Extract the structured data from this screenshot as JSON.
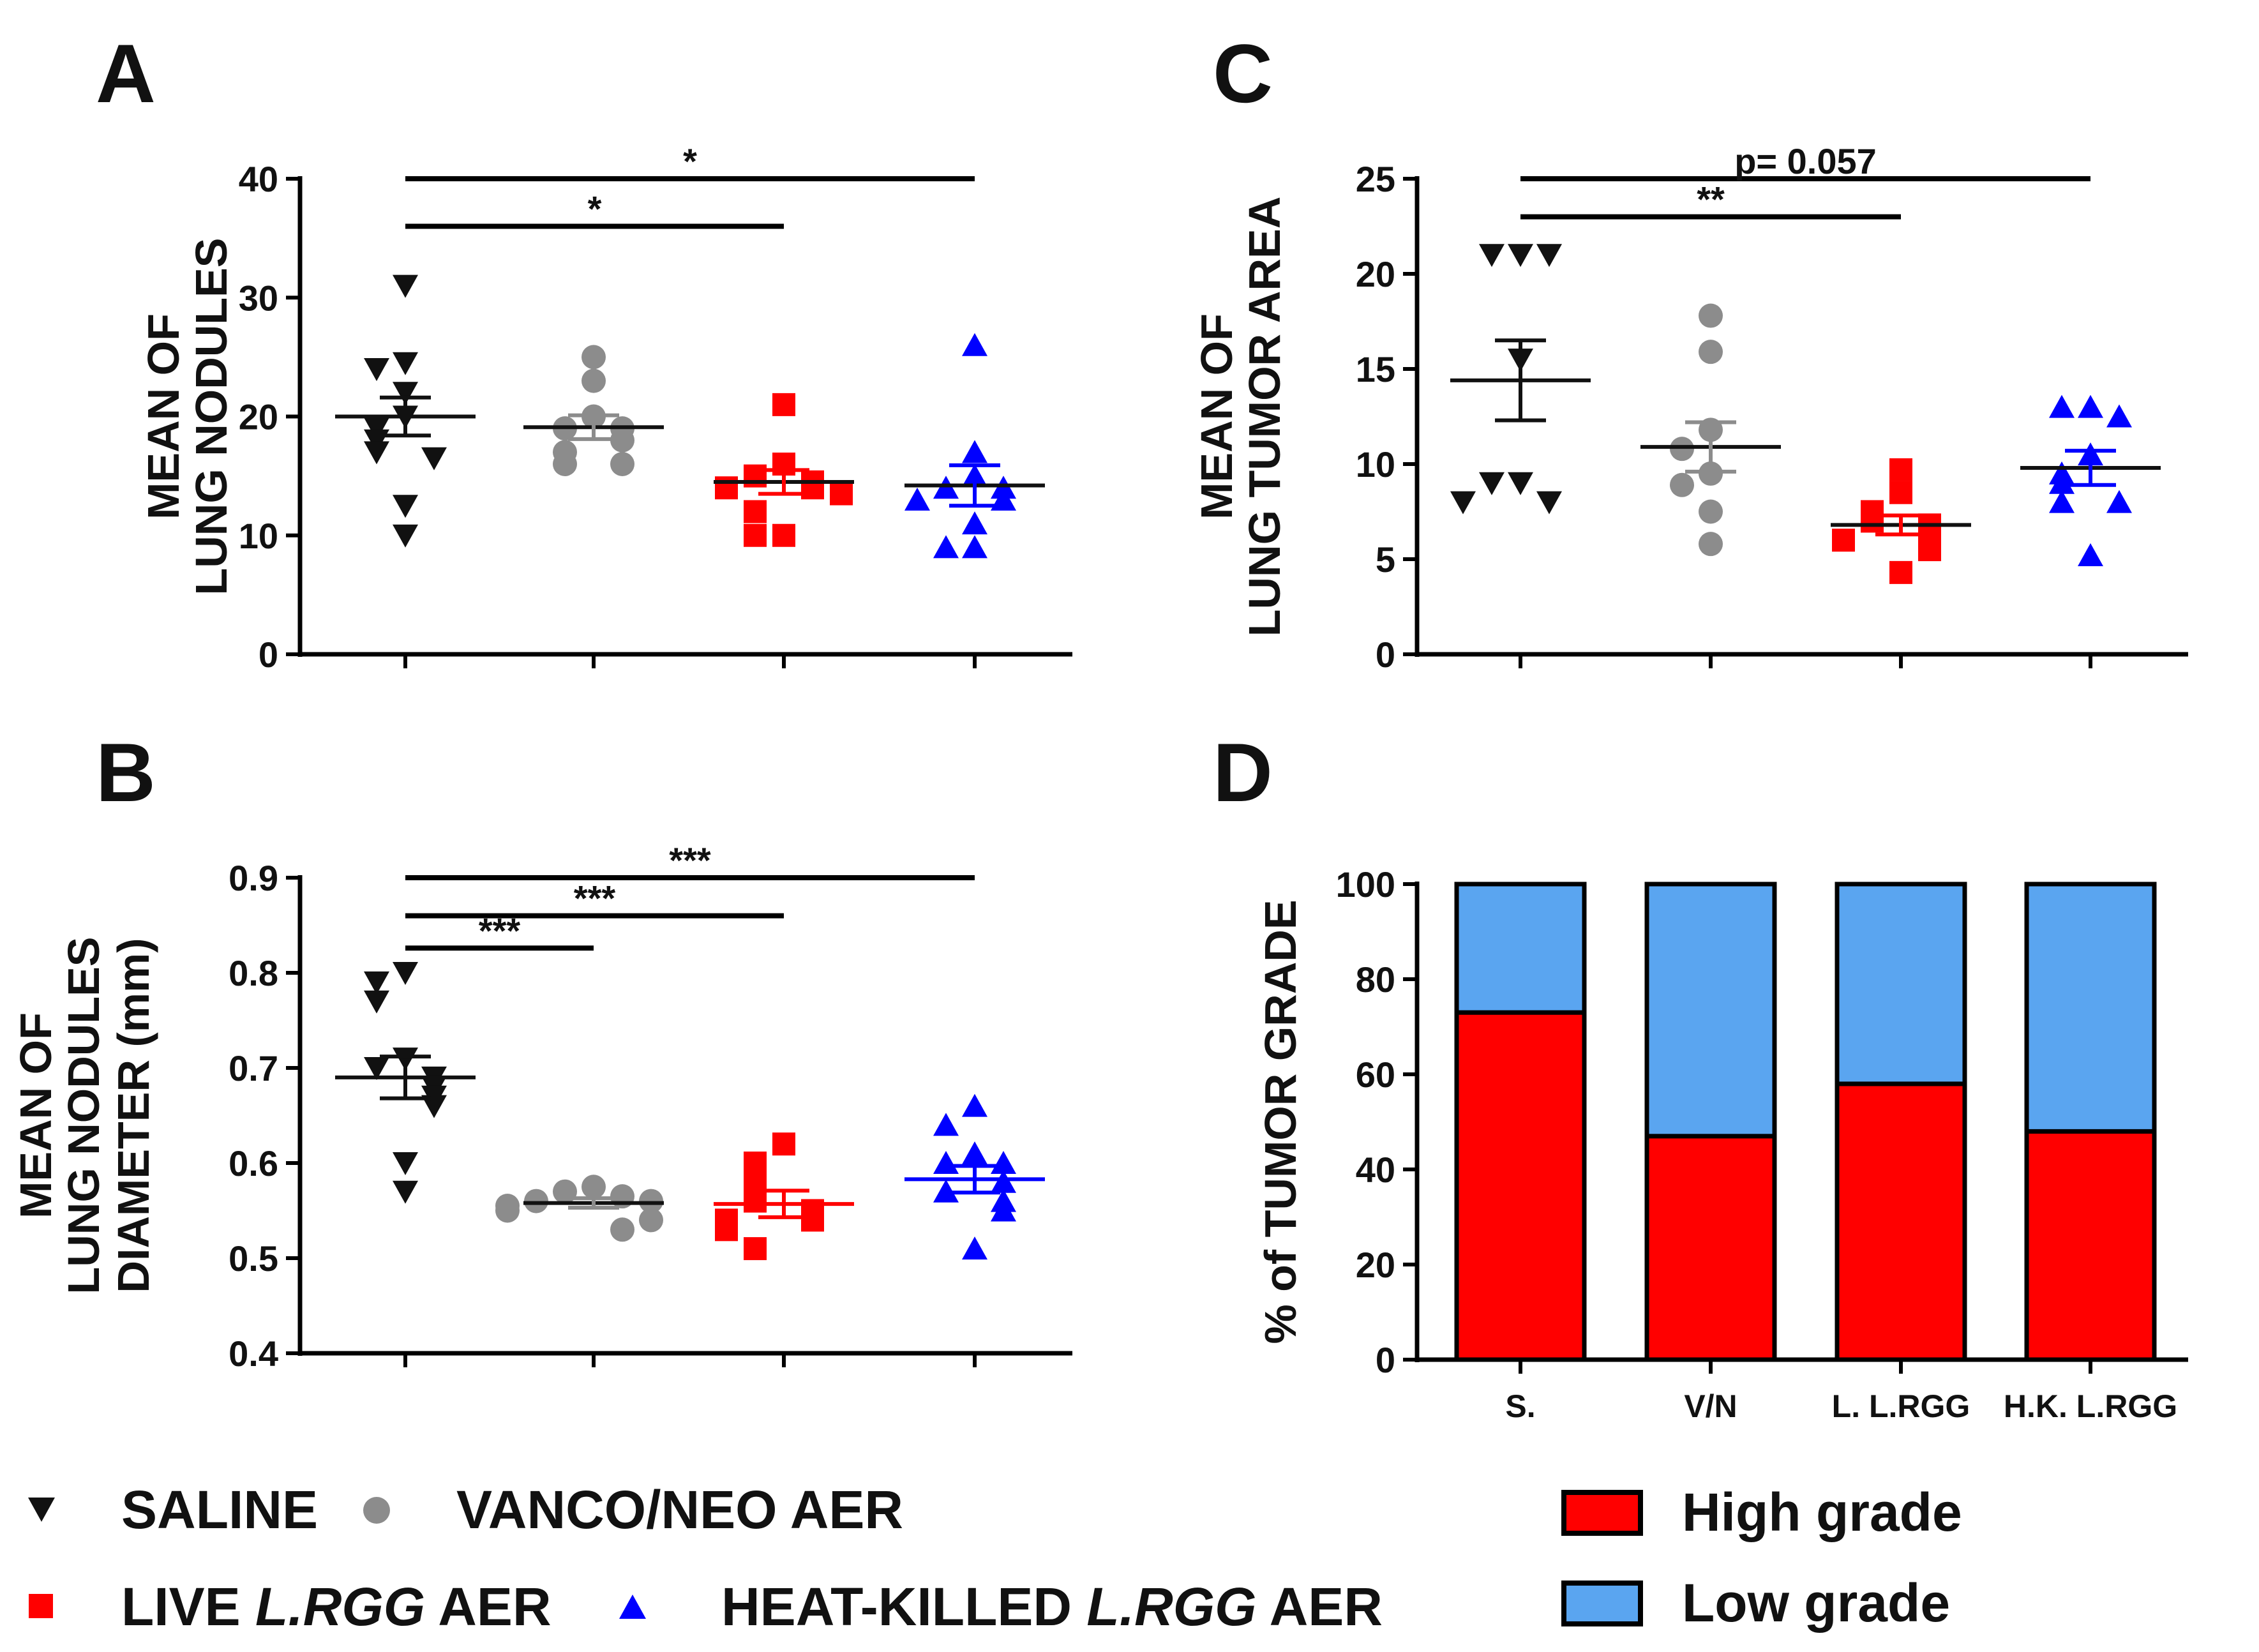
{
  "figure": {
    "panels": [
      {
        "id": "A",
        "letter": "A"
      },
      {
        "id": "B",
        "letter": "B"
      },
      {
        "id": "C",
        "letter": "C"
      },
      {
        "id": "D",
        "letter": "D"
      }
    ]
  },
  "legend": {
    "groups": [
      {
        "label": "SALINE",
        "marker": "triangle-down",
        "color": "#111111"
      },
      {
        "label": "VANCO/NEO AER",
        "marker": "circle",
        "color": "#8c8c8c"
      },
      {
        "label_parts": [
          "LIVE ",
          "L.RGG",
          " AER"
        ],
        "marker": "square",
        "color": "#ff0000"
      },
      {
        "label_parts": [
          "HEAT-KILLED ",
          "L.RGG",
          " AER"
        ],
        "marker": "triangle-up",
        "color": "#0000ff"
      }
    ],
    "grades": [
      {
        "label": "High grade",
        "color": "#ff0000"
      },
      {
        "label": "Low grade",
        "color": "#5aa5f0"
      }
    ]
  },
  "chart_data": [
    {
      "id": "A",
      "type": "scatter",
      "ylabel_lines": [
        "MEAN OF",
        "LUNG NODULES"
      ],
      "ylim": [
        0,
        40
      ],
      "yticks": [
        0,
        10,
        20,
        30,
        40
      ],
      "grid": false,
      "groups": [
        {
          "name": "SALINE",
          "marker": "triangle-down",
          "color": "#111111",
          "points": [
            31,
            24.5,
            24,
            22,
            20,
            19,
            18,
            17,
            16.5,
            12.5,
            10
          ],
          "mean": 20.0,
          "sem": 1.6
        },
        {
          "name": "VANCO/NEO AER",
          "marker": "circle",
          "color": "#8c8c8c",
          "points": [
            25,
            23,
            20,
            19,
            19,
            18,
            17,
            16,
            16
          ],
          "mean": 19.1,
          "sem": 1.0
        },
        {
          "name": "LIVE L.RGG AER",
          "marker": "square",
          "color": "#ff0000",
          "points": [
            21,
            16,
            15,
            14.5,
            14,
            14,
            13.5,
            12,
            10,
            10
          ],
          "mean": 14.5,
          "sem": 1.0
        },
        {
          "name": "HEAT-KILLED L.RGG AER",
          "marker": "triangle-up",
          "color": "#0000ff",
          "points": [
            26,
            17,
            15,
            14,
            14,
            13,
            13,
            11,
            9,
            9
          ],
          "mean": 14.2,
          "sem": 1.7
        }
      ],
      "significance": [
        {
          "from": 0,
          "to": 2,
          "label": "*",
          "y": 36
        },
        {
          "from": 0,
          "to": 3,
          "label": "*",
          "y": 40
        }
      ]
    },
    {
      "id": "B",
      "type": "scatter",
      "ylabel_lines": [
        "MEAN OF",
        "LUNG NODULES",
        "DIAMETER (mm)"
      ],
      "ylim": [
        0.4,
        0.9
      ],
      "yticks": [
        0.4,
        0.5,
        0.6,
        0.7,
        0.8,
        0.9
      ],
      "ytick_labels": [
        "0.4",
        "0.5",
        "0.6",
        "0.7",
        "0.8",
        "0.9"
      ],
      "grid": false,
      "groups": [
        {
          "name": "SALINE",
          "marker": "triangle-down",
          "color": "#111111",
          "points": [
            0.8,
            0.79,
            0.77,
            0.71,
            0.7,
            0.69,
            0.68,
            0.67,
            0.66,
            0.6,
            0.57
          ],
          "mean": 0.69,
          "sem": 0.022
        },
        {
          "name": "VANCO/NEO AER",
          "marker": "circle",
          "color": "#8c8c8c",
          "points": [
            0.575,
            0.57,
            0.565,
            0.56,
            0.56,
            0.555,
            0.55,
            0.54,
            0.53
          ],
          "mean": 0.558,
          "sem": 0.005
        },
        {
          "name": "LIVE L.RGG AER",
          "marker": "square",
          "color": "#ff0000",
          "points": [
            0.62,
            0.6,
            0.59,
            0.57,
            0.56,
            0.55,
            0.54,
            0.54,
            0.53,
            0.51
          ],
          "mean": 0.557,
          "sem": 0.014
        },
        {
          "name": "HEAT-KILLED L.RGG AER",
          "marker": "triangle-up",
          "color": "#0000ff",
          "points": [
            0.66,
            0.64,
            0.61,
            0.6,
            0.6,
            0.58,
            0.57,
            0.56,
            0.55,
            0.51
          ],
          "mean": 0.583,
          "sem": 0.014
        }
      ],
      "significance": [
        {
          "from": 0,
          "to": 1,
          "label": "***",
          "y": 0.826
        },
        {
          "from": 0,
          "to": 2,
          "label": "***",
          "y": 0.86
        },
        {
          "from": 0,
          "to": 3,
          "label": "***",
          "y": 0.9
        }
      ]
    },
    {
      "id": "C",
      "type": "scatter",
      "ylabel_lines": [
        "MEAN OF",
        "LUNG TUMOR AREA"
      ],
      "ylim": [
        0,
        25
      ],
      "yticks": [
        0,
        5,
        10,
        15,
        20,
        25
      ],
      "grid": false,
      "groups": [
        {
          "name": "SALINE",
          "marker": "triangle-down",
          "color": "#111111",
          "points": [
            21,
            21,
            21,
            15.5,
            9,
            9,
            8,
            8
          ],
          "mean": 14.4,
          "sem": 2.1
        },
        {
          "name": "VANCO/NEO AER",
          "marker": "circle",
          "color": "#8c8c8c",
          "points": [
            17.8,
            15.9,
            11.8,
            10.8,
            9.5,
            8.9,
            7.5,
            5.8
          ],
          "mean": 10.9,
          "sem": 1.3
        },
        {
          "name": "LIVE L.RGG AER",
          "marker": "square",
          "color": "#ff0000",
          "points": [
            9.7,
            8.5,
            7.5,
            7.0,
            6.8,
            6.3,
            6.0,
            5.5,
            4.3
          ],
          "mean": 6.8,
          "sem": 0.5
        },
        {
          "name": "HEAT-KILLED L.RGG AER",
          "marker": "triangle-up",
          "color": "#0000ff",
          "points": [
            13,
            13,
            12.5,
            10.5,
            9.5,
            9.0,
            8.0,
            8.0,
            5.2
          ],
          "mean": 9.8,
          "sem": 0.9
        }
      ],
      "significance": [
        {
          "from": 0,
          "to": 2,
          "label": "**",
          "y": 23
        },
        {
          "from": 0,
          "to": 3,
          "label": "p= 0.057",
          "y": 25
        }
      ]
    },
    {
      "id": "D",
      "type": "bar",
      "stacked": true,
      "ylabel": "% of TUMOR GRADE",
      "ylim": [
        0,
        100
      ],
      "yticks": [
        0,
        20,
        40,
        60,
        80,
        100
      ],
      "categories": [
        "S.",
        "V/N",
        "L. L.RGG",
        "H.K. L.RGG"
      ],
      "series": [
        {
          "name": "High grade",
          "color": "#ff0000",
          "values": [
            73,
            47,
            58,
            48
          ]
        },
        {
          "name": "Low grade",
          "color": "#5aa5f0",
          "values": [
            27,
            53,
            42,
            52
          ]
        }
      ]
    }
  ]
}
